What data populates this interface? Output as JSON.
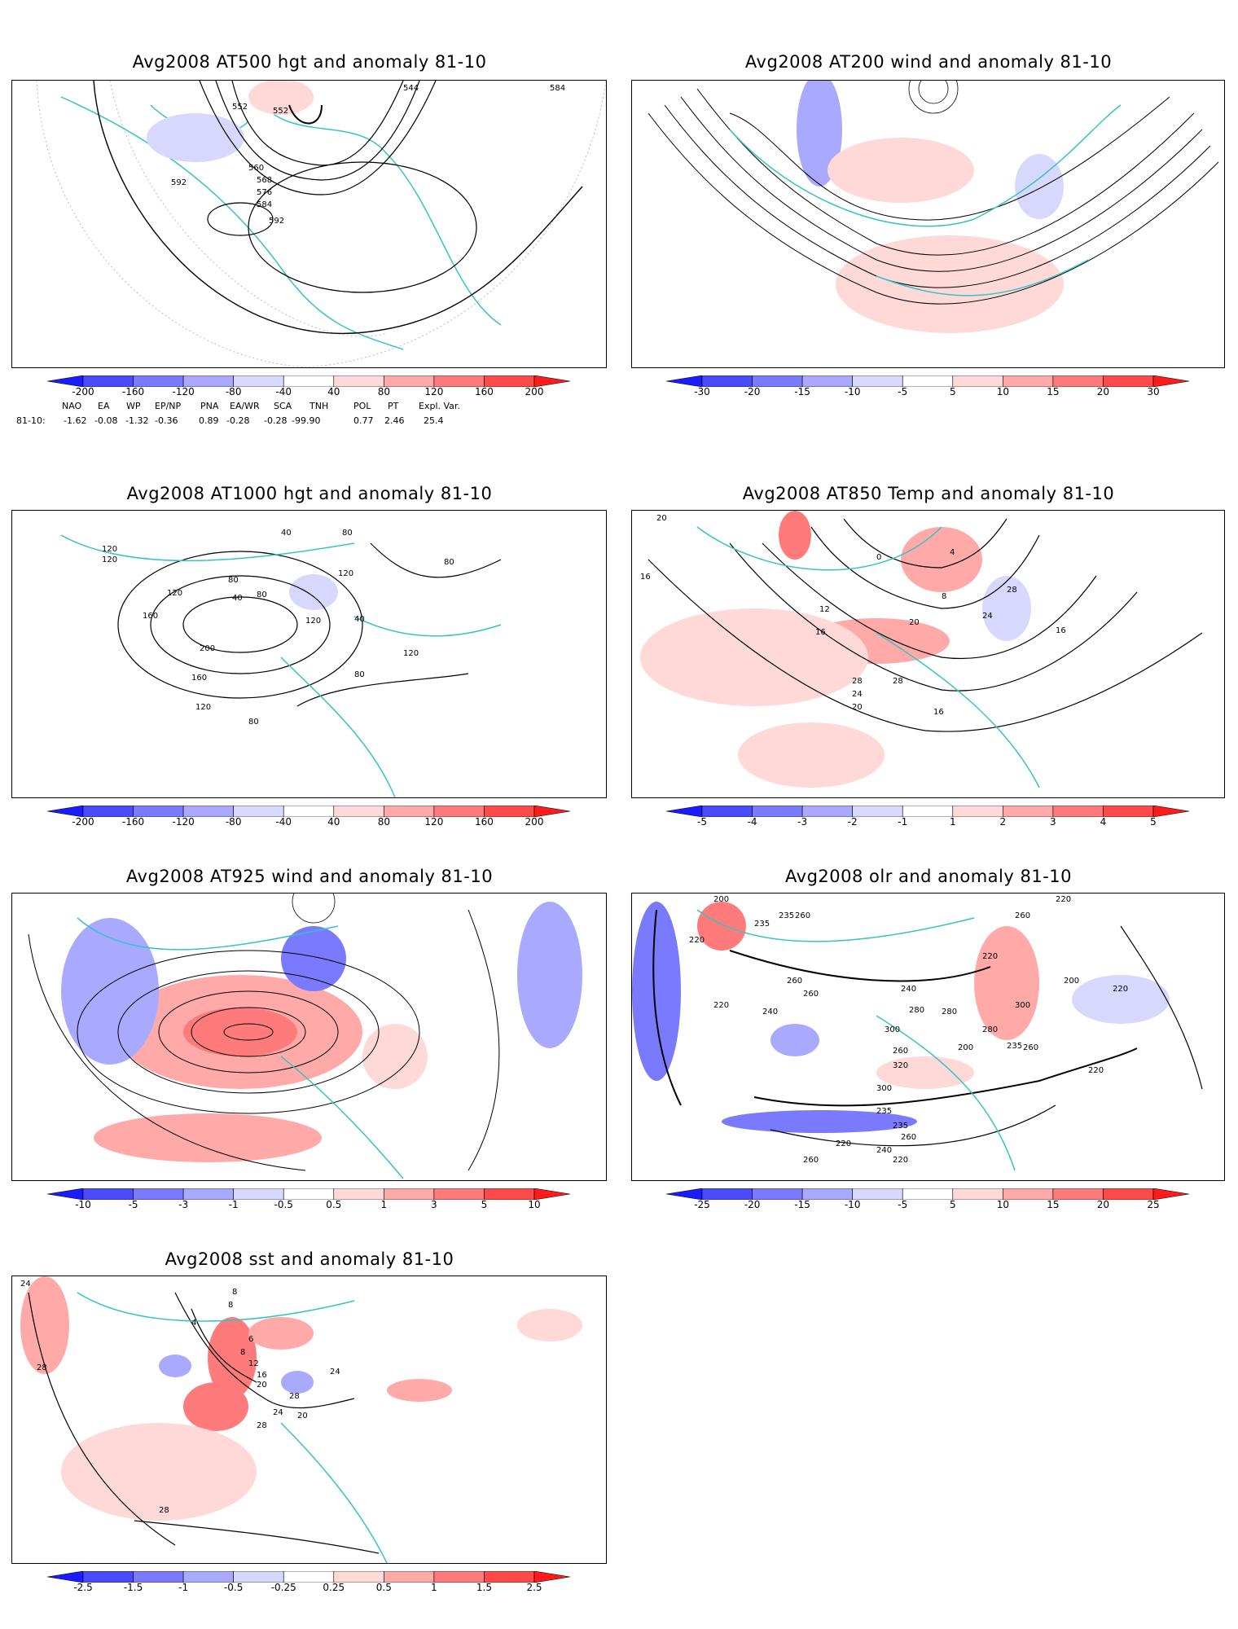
{
  "panels": [
    {
      "id": "p1",
      "title": "Avg2008 AT500 hgt and anomaly 81-10",
      "colorbar": {
        "labels": [
          "-200",
          "-160",
          "-120",
          "-80",
          "-40",
          "40",
          "80",
          "120",
          "160",
          "200"
        ],
        "colors": [
          "#1b1bff",
          "#4a4aff",
          "#7a7aff",
          "#a9a9ff",
          "#d8d8ff",
          "#ffffff",
          "#ffd8d8",
          "#ffa9a9",
          "#ff7a7a",
          "#ff4a4a",
          "#ff1b1b"
        ]
      },
      "contour_labels": [
        "544",
        "552",
        "552",
        "560",
        "568",
        "576",
        "584",
        "592",
        "592",
        "584"
      ],
      "regimes": {
        "header": [
          "NAO",
          "EA",
          "WP",
          "EP/NP",
          "PNA",
          "EA/WR",
          "SCA",
          "TNH",
          "POL",
          "PT",
          "Expl. Var."
        ],
        "row_label": "81-10:",
        "values": [
          "-1.62",
          "-0.08",
          "-1.32",
          "-0.36",
          "0.89",
          "-0.28",
          "-0.28",
          "-99.90",
          "0.77",
          "2.46",
          "25.4"
        ]
      }
    },
    {
      "id": "p2",
      "title": "Avg2008 AT200 wind and anomaly 81-10",
      "colorbar": {
        "labels": [
          "-30",
          "-20",
          "-15",
          "-10",
          "-5",
          "5",
          "10",
          "15",
          "20",
          "30"
        ],
        "colors": [
          "#1b1bff",
          "#4a4aff",
          "#7a7aff",
          "#a9a9ff",
          "#d8d8ff",
          "#ffffff",
          "#ffd8d8",
          "#ffa9a9",
          "#ff7a7a",
          "#ff4a4a",
          "#ff1b1b"
        ]
      },
      "contour_labels": []
    },
    {
      "id": "p3",
      "title": "Avg2008 AT1000 hgt and anomaly 81-10",
      "colorbar": {
        "labels": [
          "-200",
          "-160",
          "-120",
          "-80",
          "-40",
          "40",
          "80",
          "120",
          "160",
          "200"
        ],
        "colors": [
          "#1b1bff",
          "#4a4aff",
          "#7a7aff",
          "#a9a9ff",
          "#d8d8ff",
          "#ffffff",
          "#ffd8d8",
          "#ffa9a9",
          "#ff7a7a",
          "#ff4a4a",
          "#ff1b1b"
        ]
      },
      "contour_labels": [
        "120",
        "120",
        "120",
        "40",
        "80",
        "80",
        "120",
        "120",
        "40",
        "80",
        "160",
        "200",
        "160",
        "120",
        "80",
        "40",
        "80",
        "120",
        "80"
      ]
    },
    {
      "id": "p4",
      "title": "Avg2008 AT850 Temp and anomaly 81-10",
      "colorbar": {
        "labels": [
          "-5",
          "-4",
          "-3",
          "-2",
          "-1",
          "1",
          "2",
          "3",
          "4",
          "5"
        ],
        "colors": [
          "#1b1bff",
          "#4a4aff",
          "#7a7aff",
          "#a9a9ff",
          "#d8d8ff",
          "#ffffff",
          "#ffd8d8",
          "#ffa9a9",
          "#ff7a7a",
          "#ff4a4a",
          "#ff1b1b"
        ]
      },
      "contour_labels": [
        "20",
        "16",
        "0",
        "4",
        "8",
        "12",
        "16",
        "20",
        "24",
        "28",
        "28",
        "24",
        "20",
        "28",
        "16",
        "16"
      ]
    },
    {
      "id": "p5",
      "title": "Avg2008 AT925 wind and anomaly 81-10",
      "colorbar": {
        "labels": [
          "-10",
          "-5",
          "-3",
          "-1",
          "-0.5",
          "0.5",
          "1",
          "3",
          "5",
          "10"
        ],
        "colors": [
          "#1b1bff",
          "#4a4aff",
          "#7a7aff",
          "#a9a9ff",
          "#d8d8ff",
          "#ffffff",
          "#ffd8d8",
          "#ffa9a9",
          "#ff7a7a",
          "#ff4a4a",
          "#ff1b1b"
        ]
      },
      "contour_labels": []
    },
    {
      "id": "p6",
      "title": "Avg2008 olr and anomaly 81-10",
      "colorbar": {
        "labels": [
          "-25",
          "-20",
          "-15",
          "-10",
          "-5",
          "5",
          "10",
          "15",
          "20",
          "25"
        ],
        "colors": [
          "#1b1bff",
          "#4a4aff",
          "#7a7aff",
          "#a9a9ff",
          "#d8d8ff",
          "#ffffff",
          "#ffd8d8",
          "#ffa9a9",
          "#ff7a7a",
          "#ff4a4a",
          "#ff1b1b"
        ]
      },
      "contour_labels": [
        "200",
        "260",
        "220",
        "235",
        "235",
        "260",
        "240",
        "220",
        "260",
        "240",
        "280",
        "300",
        "260",
        "320",
        "300",
        "280",
        "220",
        "260",
        "220",
        "200",
        "235",
        "235",
        "260",
        "220",
        "260",
        "240",
        "220",
        "300",
        "280",
        "235",
        "260",
        "200",
        "220",
        "220"
      ]
    },
    {
      "id": "p7",
      "title": "Avg2008 sst and anomaly 81-10",
      "colorbar": {
        "labels": [
          "-2.5",
          "-1.5",
          "-1",
          "-0.5",
          "-0.25",
          "0.25",
          "0.5",
          "1",
          "1.5",
          "2.5"
        ],
        "colors": [
          "#1b1bff",
          "#4a4aff",
          "#7a7aff",
          "#a9a9ff",
          "#d8d8ff",
          "#ffffff",
          "#ffd8d8",
          "#ffa9a9",
          "#ff7a7a",
          "#ff4a4a",
          "#ff1b1b"
        ]
      },
      "contour_labels": [
        "24",
        "28",
        "8",
        "8",
        "4",
        "6",
        "8",
        "12",
        "16",
        "20",
        "24",
        "28",
        "20",
        "24",
        "28",
        "28"
      ]
    }
  ]
}
